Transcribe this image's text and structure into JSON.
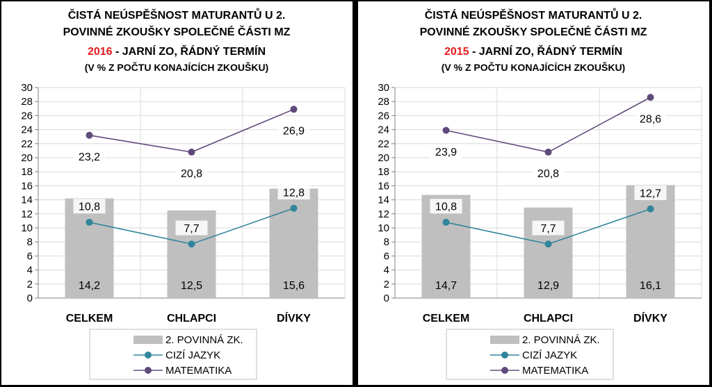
{
  "colors": {
    "bar": "#bfbfbf",
    "line_language": "#31859c",
    "line_math": "#604a7b",
    "year_highlight": "#e31b1b",
    "grid": "#d9d9d9",
    "axis": "#808080"
  },
  "chart_data": [
    {
      "type": "bar",
      "title_lines": [
        "ČISTÁ NEÚSPĚŠNOST MATURANTŮ U 2.",
        "POVINNÉ ZKOUŠKY SPOLEČNÉ ČÁSTI  MZ"
      ],
      "title_year": "2016",
      "title_rest": " - JARNÍ ZO, ŘÁDNÝ TERMÍN",
      "subtitle": "(V % Z POČTU KONAJÍCÍCH ZKOUŠKU)",
      "categories": [
        "CELKEM",
        "CHLAPCI",
        "DÍVKY"
      ],
      "ylim": [
        0,
        30
      ],
      "yticks": [
        0,
        2,
        4,
        6,
        8,
        10,
        12,
        14,
        16,
        18,
        20,
        22,
        24,
        26,
        28,
        30
      ],
      "grid": true,
      "legend_position": "bottom",
      "series": [
        {
          "name": "2. POVINNÁ ZK.",
          "kind": "bar",
          "values": [
            14.2,
            12.5,
            15.6
          ],
          "labels": [
            "14,2",
            "12,5",
            "15,6"
          ]
        },
        {
          "name": "CIZÍ JAZYK",
          "kind": "line",
          "values": [
            10.8,
            7.7,
            12.8
          ],
          "labels": [
            "10,8",
            "7,7",
            "12,8"
          ]
        },
        {
          "name": "MATEMATIKA",
          "kind": "line",
          "values": [
            23.2,
            20.8,
            26.9
          ],
          "labels": [
            "23,2",
            "20,8",
            "26,9"
          ]
        }
      ]
    },
    {
      "type": "bar",
      "title_lines": [
        "ČISTÁ NEÚSPĚŠNOST MATURANTŮ U 2.",
        "POVINNÉ ZKOUŠKY SPOLEČNÉ ČÁSTI  MZ"
      ],
      "title_year": "2015",
      "title_rest": " - JARNÍ ZO, ŘÁDNÝ TERMÍN",
      "subtitle": "(V % Z POČTU KONAJÍCÍCH ZKOUŠKU)",
      "categories": [
        "CELKEM",
        "CHLAPCI",
        "DÍVKY"
      ],
      "ylim": [
        0,
        30
      ],
      "yticks": [
        0,
        2,
        4,
        6,
        8,
        10,
        12,
        14,
        16,
        18,
        20,
        22,
        24,
        26,
        28,
        30
      ],
      "grid": true,
      "legend_position": "bottom",
      "series": [
        {
          "name": "2. POVINNÁ ZK.",
          "kind": "bar",
          "values": [
            14.7,
            12.9,
            16.1
          ],
          "labels": [
            "14,7",
            "12,9",
            "16,1"
          ]
        },
        {
          "name": "CIZÍ JAZYK",
          "kind": "line",
          "values": [
            10.8,
            7.7,
            12.7
          ],
          "labels": [
            "10,8",
            "7,7",
            "12,7"
          ]
        },
        {
          "name": "MATEMATIKA",
          "kind": "line",
          "values": [
            23.9,
            20.8,
            28.6
          ],
          "labels": [
            "23,9",
            "20,8",
            "28,6"
          ]
        }
      ]
    }
  ]
}
